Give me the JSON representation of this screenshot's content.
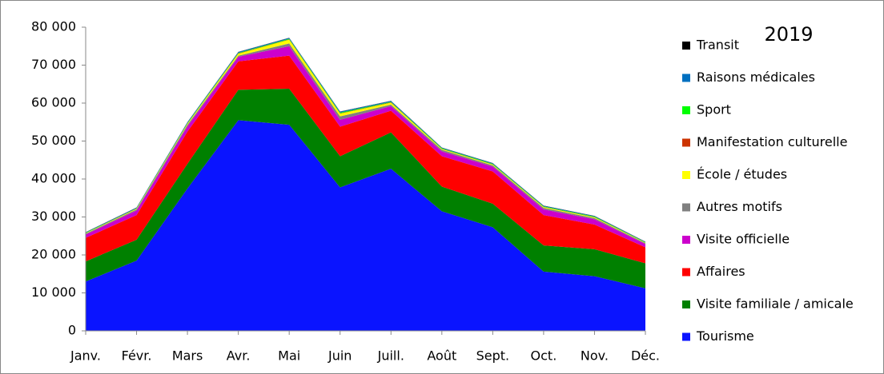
{
  "chart_data": {
    "type": "stacked_area",
    "title": "2019",
    "categories": [
      "Janv.",
      "Févr.",
      "Mars",
      "Avr.",
      "Mai",
      "Juin",
      "Juill.",
      "Août",
      "Sept.",
      "Oct.",
      "Nov.",
      "Déc."
    ],
    "ylim": [
      0,
      80000
    ],
    "yticks": [
      0,
      {
        "value": 10000,
        "label": "10 000"
      },
      {
        "value": 20000,
        "label": "20 000"
      },
      {
        "value": 30000,
        "label": "30 000"
      },
      {
        "value": 40000,
        "label": "40 000"
      },
      {
        "value": 50000,
        "label": "50 000"
      },
      {
        "value": 60000,
        "label": "60 000"
      },
      {
        "value": 70000,
        "label": "70 000"
      },
      {
        "value": 80000,
        "label": "80 000"
      }
    ],
    "legend": "right",
    "series": [
      {
        "name": "Tourisme",
        "color": "#0a14ff",
        "values": [
          13000,
          18500,
          37500,
          55500,
          54300,
          37800,
          42700,
          31500,
          27300,
          15600,
          14400,
          11200
        ]
      },
      {
        "name": "Visite familiale / amicale",
        "color": "#008000",
        "values": [
          5300,
          5500,
          6500,
          8000,
          9500,
          8200,
          9600,
          6500,
          6200,
          6900,
          7100,
          6600
        ]
      },
      {
        "name": "Affaires",
        "color": "#ff0000",
        "values": [
          6200,
          6500,
          8500,
          7500,
          8700,
          7800,
          5700,
          8000,
          8500,
          8000,
          6500,
          4200
        ]
      },
      {
        "name": "Visite officielle",
        "color": "#cc00cc",
        "values": [
          900,
          1200,
          1400,
          1200,
          2500,
          1800,
          1200,
          1300,
          1300,
          1500,
          1400,
          900
        ]
      },
      {
        "name": "Autres motifs",
        "color": "#808080",
        "values": [
          200,
          300,
          400,
          300,
          700,
          900,
          400,
          400,
          300,
          400,
          300,
          200
        ]
      },
      {
        "name": "École / études",
        "color": "#ffff00",
        "values": [
          100,
          150,
          250,
          500,
          1000,
          700,
          500,
          200,
          200,
          200,
          200,
          100
        ]
      },
      {
        "name": "Manifestation culturelle",
        "color": "#cc3300",
        "values": [
          50,
          50,
          50,
          100,
          100,
          100,
          100,
          50,
          50,
          50,
          50,
          50
        ]
      },
      {
        "name": "Sport",
        "color": "#00ff00",
        "values": [
          100,
          100,
          150,
          150,
          150,
          200,
          150,
          150,
          150,
          150,
          150,
          100
        ]
      },
      {
        "name": "Raisons médicales",
        "color": "#0070c0",
        "values": [
          100,
          150,
          200,
          200,
          200,
          250,
          200,
          150,
          150,
          150,
          150,
          100
        ]
      },
      {
        "name": "Transit",
        "color": "#000000",
        "values": [
          50,
          50,
          50,
          50,
          50,
          50,
          50,
          50,
          50,
          50,
          50,
          50
        ]
      }
    ]
  }
}
